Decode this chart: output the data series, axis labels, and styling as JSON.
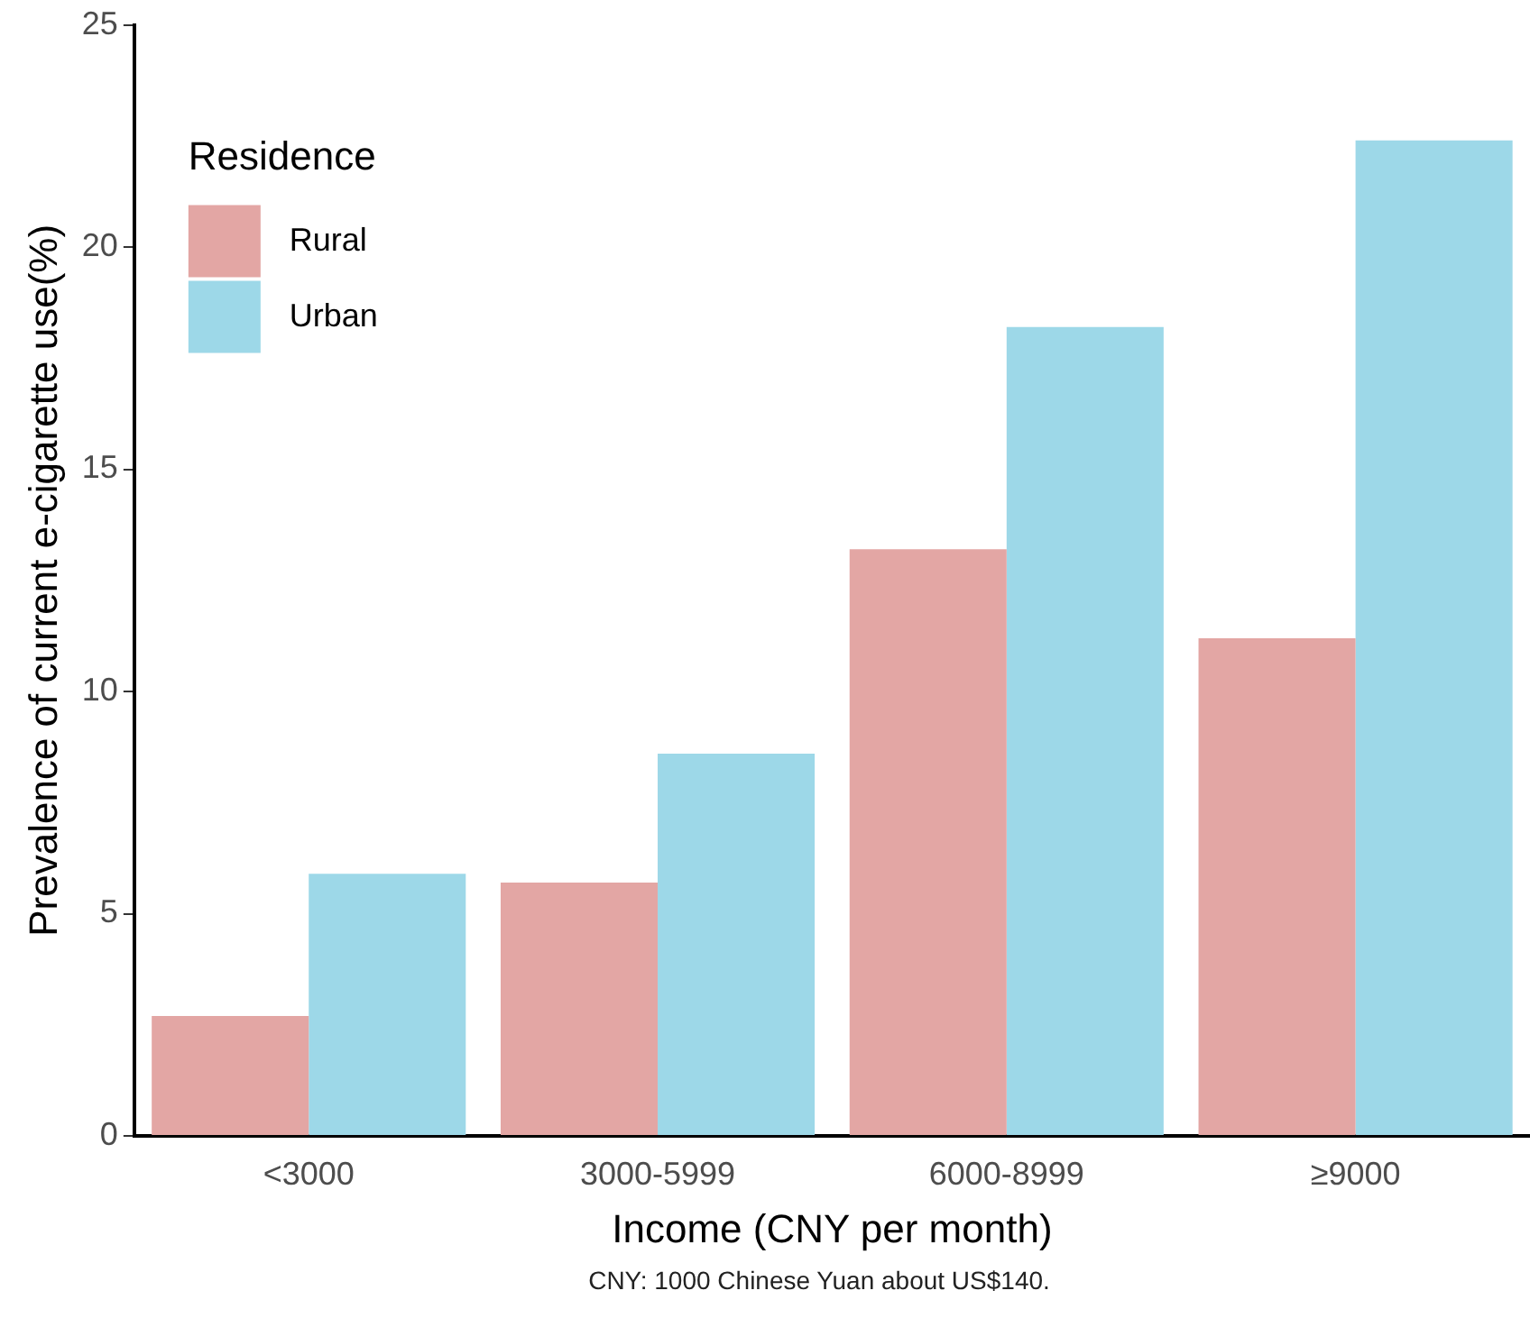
{
  "chart_data": {
    "type": "bar",
    "xlabel": "Income (CNY per month)",
    "ylabel": "Prevalence of current e-cigarette use(%)",
    "legend_title": "Residence",
    "categories": [
      "<3000",
      "3000-5999",
      "6000-8999",
      "≥9000"
    ],
    "series": [
      {
        "name": "Rural",
        "color": "#e3a6a4",
        "values": [
          2.7,
          5.7,
          13.2,
          11.2
        ]
      },
      {
        "name": "Urban",
        "color": "#9dd8e8",
        "values": [
          5.9,
          8.6,
          18.2,
          22.4
        ]
      }
    ],
    "ylim": [
      0,
      25
    ],
    "yticks": [
      0,
      5,
      10,
      15,
      20,
      25
    ],
    "grid": false,
    "legend": "top left",
    "annotations": [
      "CNY: 1000 Chinese Yuan about US$140."
    ]
  }
}
